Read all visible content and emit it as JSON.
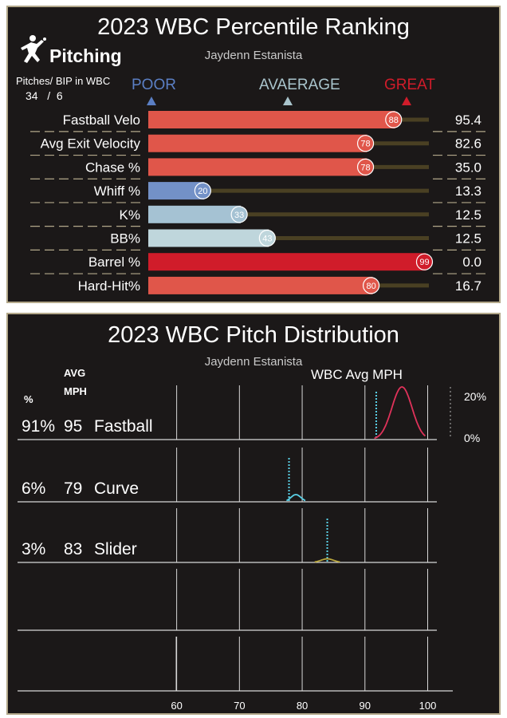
{
  "percentile": {
    "title": "2023 WBC Percentile Ranking",
    "section": "Pitching",
    "player": "Jaydenn Estanista",
    "bip_label": "Pitches/ BIP in WBC",
    "pitches": "34",
    "bip_sep": "/",
    "bip": "6",
    "scale": {
      "poor": "POOR",
      "average": "AVAERAGE",
      "great": "GREAT"
    },
    "colors": {
      "poor": "#5b7fc4",
      "average": "#a9c4cc",
      "great": "#d01c2a",
      "track": "#4a4023"
    }
  },
  "distribution": {
    "title": "2023 WBC Pitch Distribution",
    "player": "Jaydenn Estanista",
    "col_pct": "%",
    "col_avg": "AVG",
    "col_mph": "MPH",
    "wbc_avg_label": "WBC Avg MPH",
    "density_ticks": [
      "20%",
      "0%"
    ]
  },
  "chart_data": [
    {
      "type": "bar",
      "orientation": "horizontal",
      "title": "2023 WBC Percentile Ranking",
      "xlim": [
        0,
        100
      ],
      "categories": [
        "Fastball Velo",
        "Avg Exit Velocity",
        "Chase %",
        "Whiff %",
        "K%",
        "BB%",
        "Barrel %",
        "Hard-Hit%"
      ],
      "percentiles": [
        88,
        78,
        78,
        20,
        33,
        43,
        99,
        80
      ],
      "stat_values": [
        "95.4",
        "82.6",
        "35.0",
        "13.3",
        "12.5",
        "12.5",
        "0.0",
        "16.7"
      ],
      "bar_colors": [
        "#e0564a",
        "#e0564a",
        "#e0564a",
        "#7391c7",
        "#a5c2d3",
        "#bfd6dc",
        "#d01c2a",
        "#e0564a"
      ]
    },
    {
      "type": "area",
      "title": "2023 WBC Pitch Distribution",
      "xlabel": "",
      "xlim": [
        57,
        104
      ],
      "x_ticks": [
        60,
        70,
        80,
        90,
        100
      ],
      "pitches": [
        {
          "name": "Fastball",
          "pct": "91%",
          "avg_mph": "95",
          "wbc_avg_mph": 91.8,
          "color": "#e0325a",
          "peak_mph": 95.9,
          "peak_density": 0.22,
          "spread": 1.6,
          "range": [
            91.5,
            99.6
          ]
        },
        {
          "name": "Curve",
          "pct": "6%",
          "avg_mph": "79",
          "wbc_avg_mph": 77.9,
          "color": "#5ad0e6",
          "peak_mph": 79.0,
          "peak_density": 0.03,
          "spread": 0.8,
          "range": [
            77.5,
            80.5
          ]
        },
        {
          "name": "Slider",
          "pct": "3%",
          "avg_mph": "83",
          "wbc_avg_mph": 84.0,
          "color": "#b9a63c",
          "peak_mph": 84.0,
          "peak_density": 0.015,
          "spread": 1.0,
          "range": [
            82.0,
            86.0
          ]
        }
      ],
      "empty_rows": 2
    }
  ]
}
